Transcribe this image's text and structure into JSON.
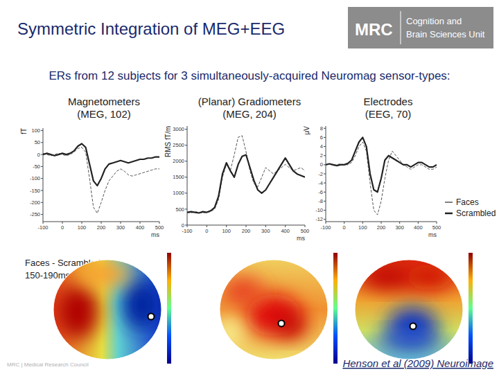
{
  "slide": {
    "title": "Symmetric Integration of MEG+EEG",
    "subtitle": "ERs from 12 subjects for 3 simultaneously-acquired Neuromag sensor-types:",
    "logo": [
      "MRC",
      "Cognition and",
      "Brain Sciences Unit"
    ],
    "topomap_label": [
      "Faces - Scrambled",
      "150-190ms"
    ],
    "citation": "Henson et al (2009) Neuroimage",
    "footer": "MRC | Medical Research Council"
  },
  "chart_data": [
    {
      "type": "line",
      "title": [
        "Magnetometers",
        "(MEG, 102)"
      ],
      "x_label": "ms",
      "y_label": "fT",
      "x": [
        -100,
        -80,
        -60,
        -40,
        -20,
        0,
        20,
        40,
        60,
        80,
        100,
        120,
        140,
        160,
        180,
        200,
        220,
        240,
        260,
        280,
        300,
        320,
        340,
        360,
        380,
        400,
        420,
        440,
        460,
        480,
        500
      ],
      "series": [
        {
          "name": "Faces",
          "color": "#555555",
          "line_style": "dashed",
          "values": [
            5,
            0,
            -5,
            0,
            5,
            0,
            -5,
            0,
            10,
            25,
            30,
            10,
            -100,
            -220,
            -245,
            -200,
            -150,
            -110,
            -90,
            -70,
            -60,
            -70,
            -85,
            -90,
            -85,
            -80,
            -75,
            -70,
            -65,
            -60,
            -60
          ]
        },
        {
          "name": "Scrambled",
          "color": "#222222",
          "line_style": "solid",
          "values": [
            0,
            5,
            0,
            -5,
            0,
            5,
            0,
            5,
            15,
            35,
            45,
            30,
            -40,
            -110,
            -130,
            -100,
            -60,
            -40,
            -35,
            -30,
            -25,
            -30,
            -35,
            -30,
            -25,
            -20,
            -20,
            -15,
            -15,
            -10,
            -10
          ]
        }
      ],
      "xlim": [
        -100,
        500
      ],
      "xticks": [
        -100,
        0,
        100,
        200,
        300,
        400,
        500
      ],
      "ylim": [
        -280,
        110
      ],
      "yticks": [
        -250,
        -200,
        -150,
        -100,
        -50,
        0,
        50,
        100
      ],
      "grid": false
    },
    {
      "type": "line",
      "title": [
        "(Planar) Gradiometers",
        "(MEG, 204)"
      ],
      "x_label": "ms",
      "y_label": "RMS fT/m",
      "x": [
        -100,
        -80,
        -60,
        -40,
        -20,
        0,
        20,
        40,
        60,
        80,
        100,
        120,
        140,
        160,
        180,
        200,
        220,
        240,
        260,
        280,
        300,
        320,
        340,
        360,
        380,
        400,
        420,
        440,
        460,
        480,
        500
      ],
      "series": [
        {
          "name": "Faces",
          "color": "#555555",
          "line_style": "dashed",
          "values": [
            400,
            380,
            420,
            400,
            380,
            400,
            420,
            500,
            800,
            1500,
            1900,
            1700,
            2200,
            2750,
            2800,
            2300,
            1700,
            1300,
            1200,
            1500,
            1800,
            1700,
            1600,
            1700,
            1800,
            1900,
            1800,
            1700,
            1750,
            1800,
            1700
          ]
        },
        {
          "name": "Scrambled",
          "color": "#222222",
          "line_style": "solid",
          "values": [
            400,
            420,
            400,
            380,
            420,
            400,
            450,
            550,
            900,
            1600,
            1950,
            1700,
            1500,
            1900,
            2150,
            2200,
            1800,
            1400,
            1100,
            1000,
            1100,
            1300,
            1500,
            1700,
            1900,
            2100,
            1900,
            1700,
            1600,
            1550,
            1500
          ]
        }
      ],
      "xlim": [
        -100,
        500
      ],
      "xticks": [
        -100,
        0,
        100,
        200,
        300,
        400,
        500
      ],
      "ylim": [
        0,
        3100
      ],
      "yticks": [
        0,
        500,
        1000,
        1500,
        2000,
        2500,
        3000
      ],
      "grid": false
    },
    {
      "type": "line",
      "title": [
        "Electrodes",
        "(EEG, 70)"
      ],
      "x_label": "ms",
      "y_label": "μV",
      "x": [
        -100,
        -80,
        -60,
        -40,
        -20,
        0,
        20,
        40,
        60,
        80,
        100,
        120,
        140,
        160,
        180,
        200,
        220,
        240,
        260,
        280,
        300,
        320,
        340,
        360,
        380,
        400,
        420,
        440,
        460,
        480,
        500
      ],
      "series": [
        {
          "name": "Faces",
          "color": "#555555",
          "line_style": "dashed",
          "values": [
            0,
            0.2,
            -0.2,
            0,
            0.2,
            0,
            0,
            0.5,
            2,
            4,
            5,
            3,
            -4,
            -10,
            -11,
            -8,
            -3,
            1,
            3,
            2,
            1,
            0,
            -0.5,
            -1,
            -0.5,
            0,
            0,
            -0.5,
            -1,
            -1,
            -0.5
          ]
        },
        {
          "name": "Scrambled",
          "color": "#222222",
          "line_style": "solid",
          "values": [
            0,
            0.2,
            0,
            -0.2,
            0,
            0,
            0.3,
            1,
            3,
            5,
            6,
            4,
            -2,
            -5.5,
            -6,
            -3,
            1,
            2,
            1.5,
            1,
            0.5,
            0,
            0,
            -0.5,
            0,
            0.5,
            0.5,
            0,
            -0.5,
            -0.5,
            0
          ]
        }
      ],
      "xlim": [
        -100,
        500
      ],
      "xticks": [
        -100,
        0,
        100,
        200,
        300,
        400,
        500
      ],
      "ylim": [
        -12.5,
        8.5
      ],
      "yticks": [
        -12,
        -10,
        -8,
        -6,
        -4,
        -2,
        0,
        2,
        4,
        6,
        8
      ],
      "grid": false,
      "legend": "right"
    }
  ]
}
